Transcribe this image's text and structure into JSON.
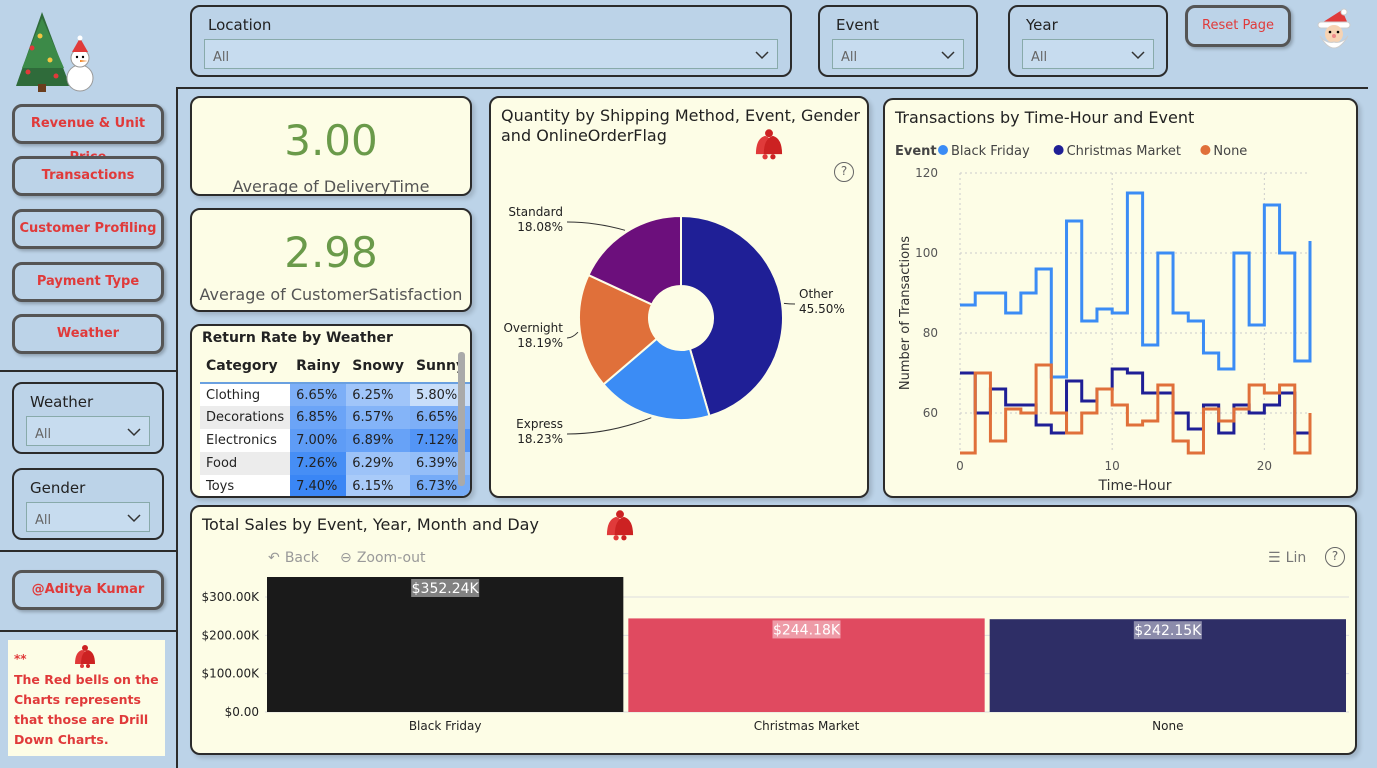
{
  "filters": {
    "location": {
      "label": "Location",
      "value": "All"
    },
    "event": {
      "label": "Event",
      "value": "All"
    },
    "year": {
      "label": "Year",
      "value": "All"
    },
    "weather": {
      "label": "Weather",
      "value": "All"
    },
    "gender": {
      "label": "Gender",
      "value": "All"
    }
  },
  "reset_label": "Reset Page",
  "nav": [
    "Revenue & Unit Price",
    "Transactions",
    "Customer Profiling",
    "Payment Type",
    "Weather"
  ],
  "author": "@Aditya Kumar",
  "note": {
    "stars": "**",
    "text": "The Red bells on the Charts represents that those are Drill Down Charts."
  },
  "kpis": [
    {
      "value": "3.00",
      "label": "Average of DeliveryTime"
    },
    {
      "value": "2.98",
      "label": "Average of CustomerSatisfaction"
    }
  ],
  "return_rate": {
    "title": "Return Rate by Weather",
    "headers": [
      "Category",
      "Rainy",
      "Snowy",
      "Sunny"
    ],
    "rows": [
      [
        "Clothing",
        "6.65%",
        "6.25%",
        "5.80%"
      ],
      [
        "Decorations",
        "6.85%",
        "6.57%",
        "6.65%"
      ],
      [
        "Electronics",
        "7.00%",
        "6.89%",
        "7.12%"
      ],
      [
        "Food",
        "7.26%",
        "6.29%",
        "6.39%"
      ],
      [
        "Toys",
        "7.40%",
        "6.15%",
        "6.73%"
      ]
    ]
  },
  "donut": {
    "title_line1": "Quantity by Shipping Method, Event, Gender",
    "title_line2": "and OnlineOrderFlag",
    "help": "?"
  },
  "transactions": {
    "title": "Transactions by Time-Hour and Event",
    "legend_title": "Event"
  },
  "sales": {
    "title": "Total Sales by Event, Year, Month and Day",
    "back_label": "Back",
    "zoom_label": "Zoom-out",
    "lin_label": "Lin",
    "help": "?"
  },
  "colors": {
    "accent_red": "#e03a3a",
    "kpi_green": "#6a9a4a",
    "card_bg": "#fdfde6",
    "page_bg": "#bcd3e8"
  },
  "chart_data": [
    {
      "type": "pie",
      "variant": "donut",
      "labels": [
        "Other",
        "Express",
        "Overnight",
        "Standard"
      ],
      "values": [
        45.5,
        18.23,
        18.19,
        18.08
      ],
      "display": [
        "45.50%",
        "18.23%",
        "18.19%",
        "18.08%"
      ],
      "colors": [
        "#1f1f96",
        "#3b8cf5",
        "#e0703a",
        "#6c0f7c"
      ]
    },
    {
      "type": "line",
      "variant": "step",
      "title": "Transactions by Time-Hour and Event",
      "xlabel": "Time-Hour",
      "ylabel": "Number of Transactions",
      "xlim": [
        0,
        23
      ],
      "ylim": [
        50,
        120
      ],
      "xticks": [
        0,
        10,
        20
      ],
      "yticks": [
        60,
        80,
        100,
        120
      ],
      "x": [
        0,
        1,
        2,
        3,
        4,
        5,
        6,
        7,
        8,
        9,
        10,
        11,
        12,
        13,
        14,
        15,
        16,
        17,
        18,
        19,
        20,
        21,
        22,
        23
      ],
      "series": [
        {
          "name": "Black Friday",
          "color": "#3b8cf5",
          "values": [
            87,
            90,
            90,
            85,
            90,
            96,
            69,
            108,
            83,
            86,
            85,
            115,
            77,
            100,
            85,
            83,
            75,
            71,
            100,
            82,
            112,
            100,
            73,
            103
          ]
        },
        {
          "name": "Christmas Market",
          "color": "#1f1f96",
          "values": [
            70,
            60,
            66,
            62,
            62,
            57,
            55,
            68,
            63,
            66,
            71,
            70,
            65,
            65,
            60,
            56,
            62,
            55,
            62,
            60,
            62,
            65,
            55,
            51
          ]
        },
        {
          "name": "None",
          "color": "#e0703a",
          "values": [
            50,
            70,
            53,
            61,
            60,
            72,
            60,
            55,
            60,
            66,
            62,
            57,
            58,
            67,
            53,
            50,
            61,
            58,
            61,
            67,
            65,
            67,
            50,
            60
          ]
        }
      ],
      "legend": "top-left"
    },
    {
      "type": "bar",
      "title": "Total Sales by Event, Year, Month and Day",
      "categories": [
        "Black Friday",
        "Christmas Market",
        "None"
      ],
      "values": [
        352.24,
        244.18,
        242.15
      ],
      "labels": [
        "$352.24K",
        "$244.18K",
        "$242.15K"
      ],
      "colors": [
        "#1a1a1a",
        "#e04a60",
        "#2e2e66"
      ],
      "ylim": [
        0,
        352.24
      ],
      "yticks": [
        0,
        100,
        200,
        300
      ],
      "ytick_labels": [
        "$0.00",
        "$100.00K",
        "$200.00K",
        "$300.00K"
      ]
    }
  ]
}
